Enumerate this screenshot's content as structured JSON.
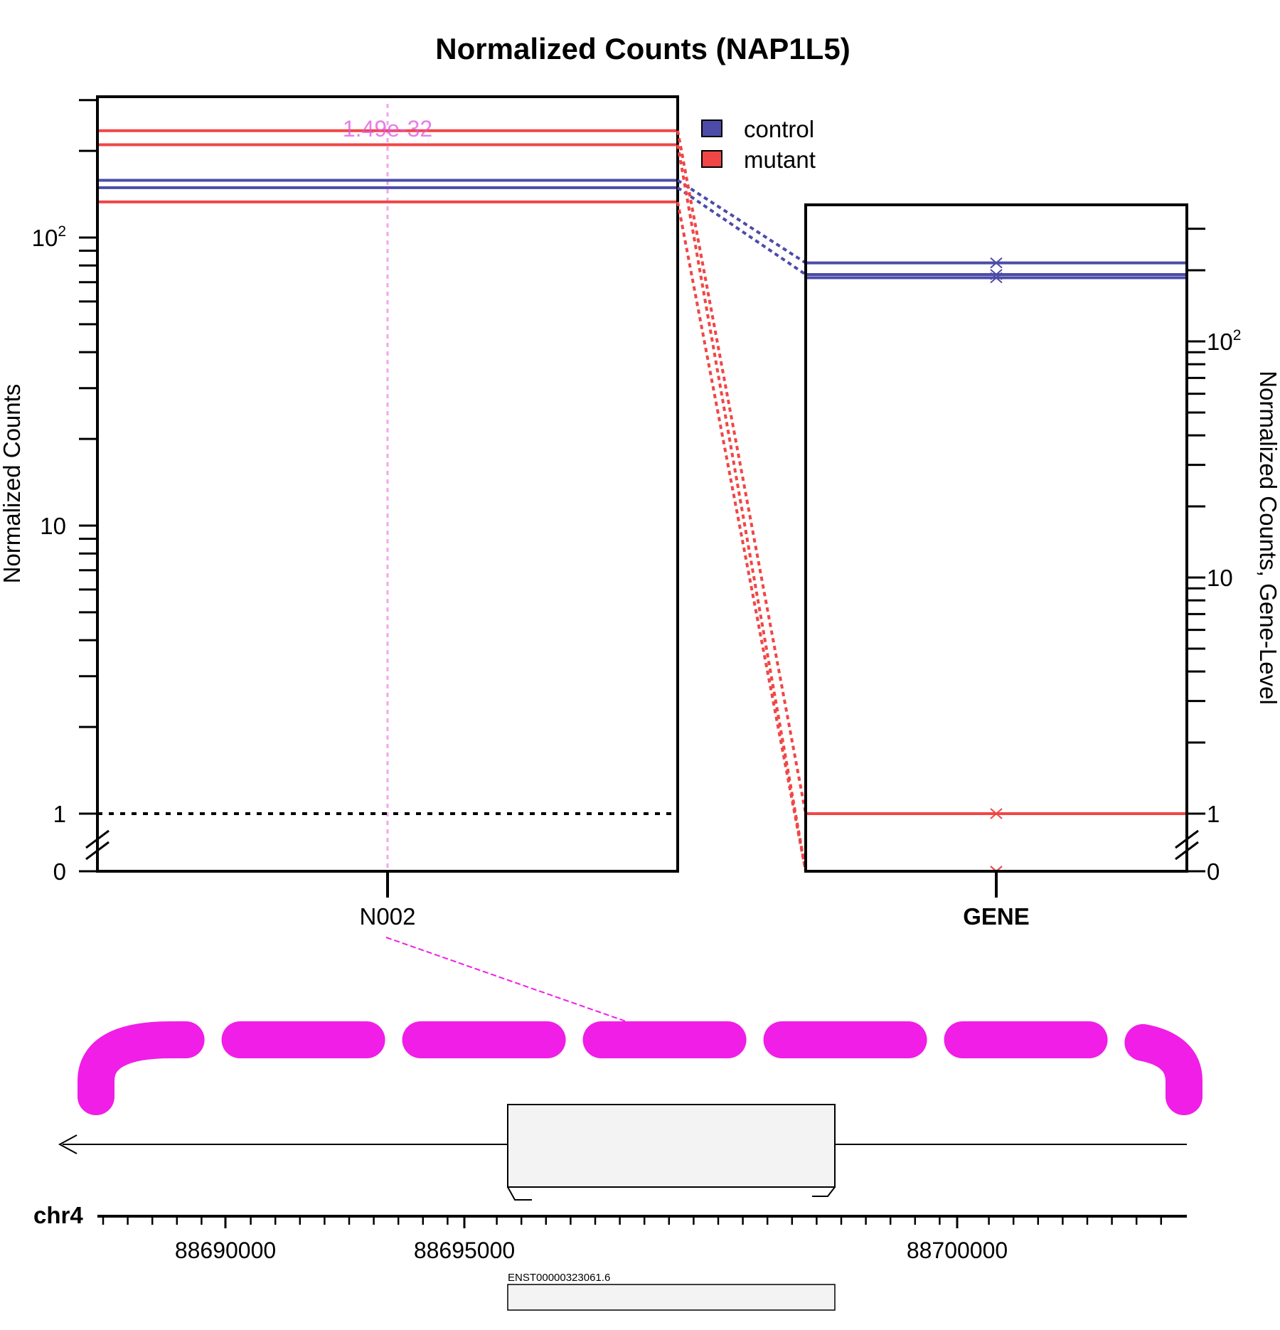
{
  "colors": {
    "control": "#4C4CA8",
    "mutant": "#F04646",
    "junction": "#F01EE6",
    "pvalue_line": "#F2A6F0",
    "transcript_fill": "#F3F3F3"
  },
  "chart_data": {
    "type": "line",
    "title": "Normalized Counts (NAP1L5)",
    "left_panel": {
      "ylabel": "Normalized Counts",
      "scale": "log (broken axis at 0)",
      "y_ticks": [
        "0",
        "1",
        "10",
        "10^2"
      ],
      "categories": [
        "N002"
      ],
      "pvalue_label": "1.49e-32",
      "reference_line": 1,
      "series": [
        {
          "name": "control",
          "values": [
            158,
            149
          ]
        },
        {
          "name": "mutant",
          "values": [
            235,
            210,
            133
          ]
        }
      ]
    },
    "right_panel": {
      "ylabel": "Normalized Counts, Gene-Level",
      "scale": "log (broken axis at 0)",
      "y_ticks": [
        "0",
        "1",
        "10",
        "10^2"
      ],
      "categories": [
        "GENE"
      ],
      "series": [
        {
          "name": "control",
          "values": [
            215,
            192,
            186
          ]
        },
        {
          "name": "mutant",
          "values": [
            1,
            0,
            0
          ]
        }
      ]
    },
    "legend": {
      "placement": "top-center",
      "entries": [
        "control",
        "mutant"
      ]
    },
    "genome_track": {
      "chromosome": "chr4",
      "tick_labels": [
        "88690000",
        "88695000",
        "88700000"
      ],
      "transcript": "ENST00000323061.6",
      "strand": "-"
    }
  }
}
